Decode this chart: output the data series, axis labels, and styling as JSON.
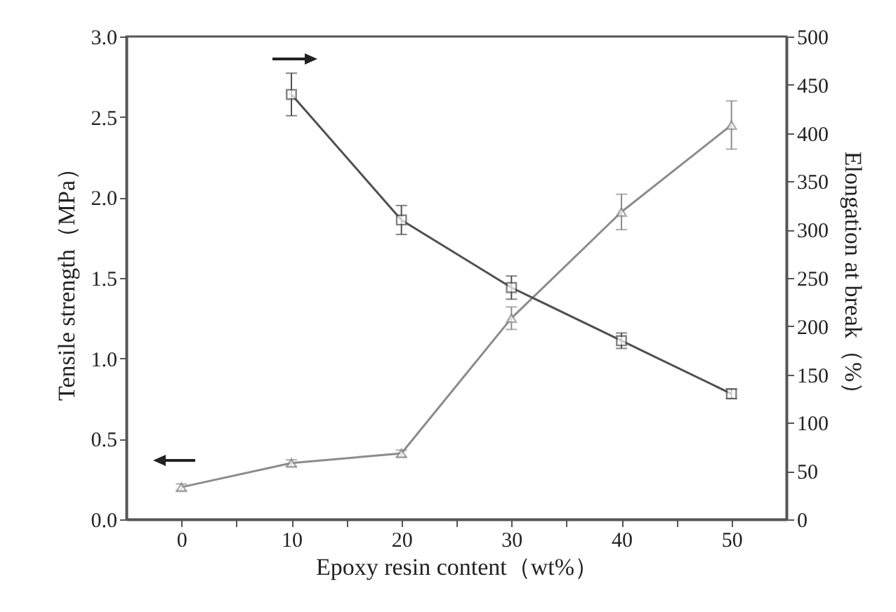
{
  "chart_data": {
    "type": "line",
    "xlabel": "Epoxy resin content（wt%）",
    "ylabel": "Tensile strength（MPa）",
    "y2label": "Elongation at break（%）",
    "x": [
      0,
      10,
      20,
      30,
      40,
      50
    ],
    "series": [
      {
        "color": "#8c8c8c",
        "marker": "triangle",
        "values": [
          0.2,
          0.35,
          0.41,
          1.25,
          1.91,
          2.45
        ],
        "errors": [
          0.02,
          0.02,
          0.02,
          0.07,
          0.11,
          0.15
        ]
      },
      {
        "color": "#505050",
        "marker": "square",
        "axis": "y2",
        "x": [
          10,
          20,
          30,
          40,
          50
        ],
        "values": [
          440,
          310,
          240,
          185,
          130
        ],
        "errors": [
          22,
          15,
          12,
          8,
          5
        ]
      }
    ],
    "xlim": [
      -5,
      55
    ],
    "xticks": [
      0,
      {
        "value": 5,
        "label": null
      },
      10,
      {
        "value": 15,
        "label": null
      },
      20,
      {
        "value": 25,
        "label": null
      },
      30,
      {
        "value": 35,
        "label": null
      },
      40,
      {
        "value": 45,
        "label": null
      },
      50
    ],
    "ylim": [
      0,
      3
    ],
    "yticks": [
      {
        "value": 0,
        "label": "0.0"
      },
      {
        "value": 0.5,
        "label": "0.5"
      },
      {
        "value": 1,
        "label": "1.0"
      },
      {
        "value": 1.5,
        "label": "1.5"
      },
      {
        "value": 2,
        "label": "2.0"
      },
      {
        "value": 2.5,
        "label": "2.5"
      },
      {
        "value": 3,
        "label": "3.0"
      }
    ],
    "y2lim": [
      0,
      500
    ],
    "y2ticks": [
      0,
      50,
      100,
      150,
      200,
      250,
      300,
      350,
      400,
      450,
      500
    ],
    "grid": false
  }
}
